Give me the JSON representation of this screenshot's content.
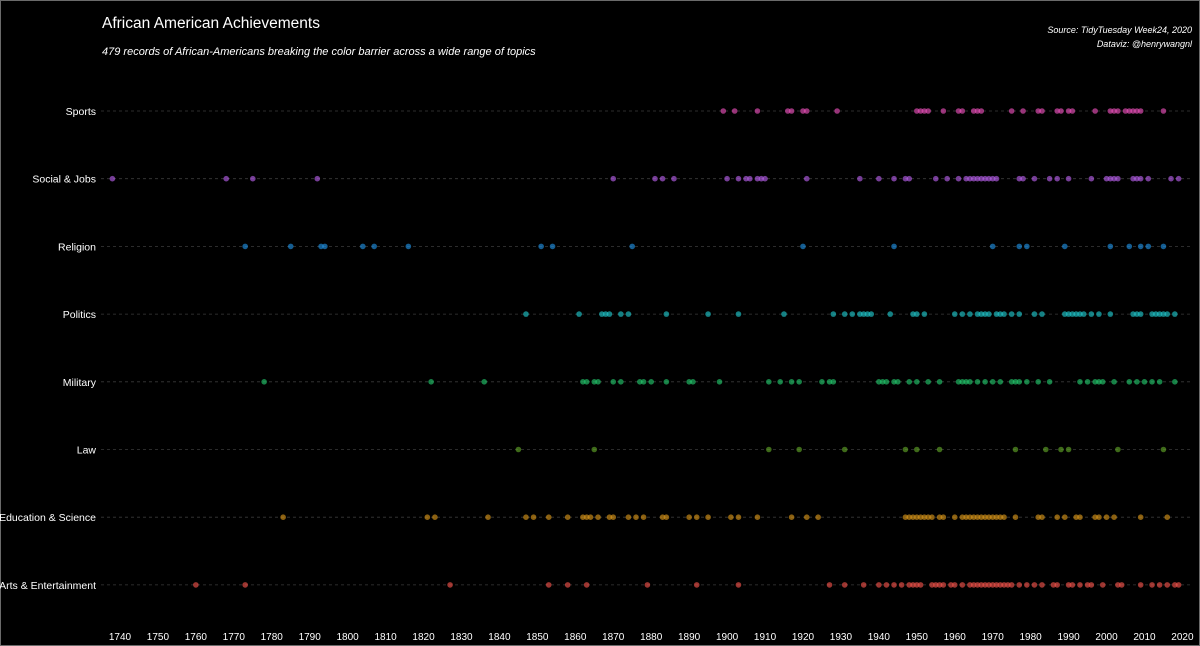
{
  "chart_data": {
    "type": "scatter",
    "title": "African American Achievements",
    "subtitle": "479 records of African-Americans breaking the color barrier across a wide range of topics",
    "caption_lines": [
      "Source: TidyTuesday Week24, 2020",
      "Dataviz: @henrywangnl"
    ],
    "xlabel": "",
    "ylabel": "",
    "xlim": [
      1735,
      2022
    ],
    "x_ticks": [
      1740,
      1750,
      1760,
      1770,
      1780,
      1790,
      1800,
      1810,
      1820,
      1830,
      1840,
      1850,
      1860,
      1870,
      1880,
      1890,
      1900,
      1910,
      1920,
      1930,
      1940,
      1950,
      1960,
      1970,
      1980,
      1990,
      2000,
      2010,
      2020
    ],
    "grid": "horizontal dotted",
    "legend": "none",
    "categories": [
      "Sports",
      "Social & Jobs",
      "Religion",
      "Politics",
      "Military",
      "Law",
      "Education & Science",
      "Arts & Entertainment"
    ],
    "colors": {
      "Sports": "#e84fb8",
      "Social & Jobs": "#b45de6",
      "Religion": "#1f8fe0",
      "Politics": "#1fc4c9",
      "Military": "#22c46a",
      "Law": "#5fa326",
      "Education & Science": "#d69419",
      "Arts & Entertainment": "#f0524a"
    },
    "series": [
      {
        "name": "Sports",
        "x": [
          1899,
          1902,
          1908,
          1916,
          1917,
          1920,
          1921,
          1929,
          1950,
          1951,
          1952,
          1953,
          1957,
          1961,
          1962,
          1965,
          1966,
          1967,
          1975,
          1978,
          1982,
          1983,
          1987,
          1988,
          1990,
          1991,
          1997,
          2001,
          2002,
          2003,
          2005,
          2006,
          2007,
          2008,
          2009,
          2015
        ]
      },
      {
        "name": "Social & Jobs",
        "x": [
          1738,
          1768,
          1775,
          1792,
          1870,
          1881,
          1883,
          1886,
          1900,
          1903,
          1905,
          1906,
          1908,
          1909,
          1910,
          1921,
          1935,
          1940,
          1944,
          1947,
          1948,
          1955,
          1958,
          1961,
          1963,
          1964,
          1965,
          1966,
          1967,
          1968,
          1969,
          1970,
          1971,
          1977,
          1978,
          1981,
          1985,
          1987,
          1990,
          1996,
          2000,
          2001,
          2002,
          2003,
          2007,
          2008,
          2009,
          2011,
          2017,
          2019
        ]
      },
      {
        "name": "Religion",
        "x": [
          1773,
          1785,
          1793,
          1794,
          1804,
          1807,
          1816,
          1851,
          1854,
          1875,
          1920,
          1944,
          1970,
          1977,
          1979,
          1989,
          2001,
          2006,
          2009,
          2011,
          2015
        ]
      },
      {
        "name": "Politics",
        "x": [
          1847,
          1861,
          1867,
          1868,
          1869,
          1872,
          1874,
          1884,
          1895,
          1903,
          1915,
          1928,
          1931,
          1933,
          1935,
          1936,
          1937,
          1938,
          1943,
          1949,
          1950,
          1952,
          1960,
          1962,
          1964,
          1966,
          1967,
          1968,
          1969,
          1971,
          1972,
          1973,
          1975,
          1977,
          1981,
          1983,
          1989,
          1990,
          1991,
          1992,
          1993,
          1994,
          1996,
          1998,
          2001,
          2007,
          2008,
          2009,
          2012,
          2013,
          2014,
          2015,
          2016,
          2018
        ]
      },
      {
        "name": "Military",
        "x": [
          1778,
          1822,
          1836,
          1862,
          1863,
          1865,
          1866,
          1870,
          1872,
          1877,
          1878,
          1880,
          1884,
          1890,
          1891,
          1898,
          1911,
          1914,
          1917,
          1919,
          1925,
          1927,
          1928,
          1940,
          1941,
          1942,
          1944,
          1945,
          1948,
          1950,
          1953,
          1956,
          1961,
          1962,
          1963,
          1964,
          1966,
          1968,
          1970,
          1972,
          1975,
          1976,
          1977,
          1979,
          1982,
          1985,
          1993,
          1995,
          1997,
          1998,
          1999,
          2002,
          2006,
          2008,
          2010,
          2012,
          2014,
          2018
        ]
      },
      {
        "name": "Law",
        "x": [
          1845,
          1865,
          1911,
          1919,
          1931,
          1947,
          1950,
          1956,
          1976,
          1984,
          1988,
          1990,
          2003,
          2015
        ]
      },
      {
        "name": "Education & Science",
        "x": [
          1783,
          1821,
          1823,
          1837,
          1847,
          1849,
          1853,
          1858,
          1862,
          1863,
          1864,
          1866,
          1869,
          1870,
          1874,
          1876,
          1878,
          1883,
          1884,
          1890,
          1892,
          1895,
          1901,
          1903,
          1908,
          1917,
          1921,
          1924,
          1947,
          1948,
          1949,
          1950,
          1951,
          1952,
          1953,
          1954,
          1956,
          1957,
          1960,
          1962,
          1963,
          1964,
          1965,
          1966,
          1967,
          1968,
          1969,
          1970,
          1971,
          1972,
          1973,
          1976,
          1982,
          1983,
          1987,
          1989,
          1992,
          1993,
          1997,
          1998,
          2000,
          2002,
          2009,
          2016
        ]
      },
      {
        "name": "Arts & Entertainment",
        "x": [
          1760,
          1773,
          1827,
          1853,
          1858,
          1863,
          1879,
          1892,
          1903,
          1927,
          1931,
          1936,
          1940,
          1942,
          1944,
          1946,
          1948,
          1949,
          1950,
          1951,
          1954,
          1955,
          1956,
          1957,
          1959,
          1960,
          1962,
          1964,
          1965,
          1966,
          1967,
          1968,
          1969,
          1970,
          1971,
          1972,
          1973,
          1974,
          1975,
          1977,
          1979,
          1981,
          1983,
          1986,
          1987,
          1990,
          1991,
          1993,
          1995,
          1996,
          1999,
          2003,
          2004,
          2009,
          2012,
          2014,
          2016,
          2018,
          2019
        ]
      }
    ]
  }
}
